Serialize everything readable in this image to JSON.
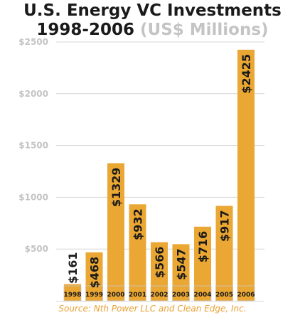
{
  "title_line1": "U.S. Energy VC Investments",
  "title_line2_years": "1998-2006",
  "title_line2_unit": "(US$ Millions)",
  "source": "Source: Nth Power LLC and Clean Edge, Inc.",
  "colors": {
    "bar": "#eba733",
    "bar_outline": "#c9c9c9",
    "grid": "#d6d6d6",
    "axis_label": "#c4c4c4",
    "title": "#1a1a1a",
    "source": "#e8a030"
  },
  "chart_data": {
    "type": "bar",
    "categories": [
      "1998",
      "1999",
      "2000",
      "2001",
      "2002",
      "2003",
      "2004",
      "2005",
      "2006"
    ],
    "values": [
      161,
      468,
      1329,
      932,
      566,
      547,
      716,
      917,
      2425
    ],
    "data_labels": [
      "$161",
      "$468",
      "$1329",
      "$932",
      "$566",
      "$547",
      "$716",
      "$917",
      "$2425"
    ],
    "y_ticks": [
      500,
      1000,
      1500,
      2000,
      2500
    ],
    "y_tick_labels": [
      "$500",
      "$1000",
      "$1500",
      "$2000",
      "$2500"
    ],
    "ylim": [
      0,
      2500
    ],
    "grid": true,
    "xlabel": "",
    "ylabel": ""
  }
}
